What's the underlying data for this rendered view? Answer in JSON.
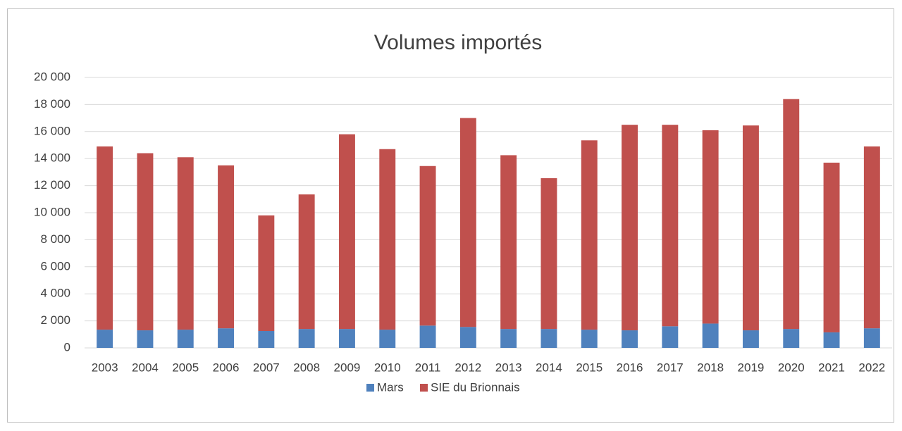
{
  "chart_data": {
    "type": "stacked_bar",
    "title": "Volumes importés",
    "categories": [
      "2003",
      "2004",
      "2005",
      "2006",
      "2007",
      "2008",
      "2009",
      "2010",
      "2011",
      "2012",
      "2013",
      "2014",
      "2015",
      "2016",
      "2017",
      "2018",
      "2019",
      "2020",
      "2021",
      "2022"
    ],
    "series": [
      {
        "name": "Mars",
        "color": "#4f81bd",
        "values": [
          1350,
          1300,
          1350,
          1450,
          1250,
          1400,
          1400,
          1350,
          1650,
          1550,
          1400,
          1400,
          1350,
          1300,
          1600,
          1800,
          1300,
          1400,
          1150,
          1450
        ]
      },
      {
        "name": "SIE du Brionnais",
        "color": "#c0504d",
        "values": [
          13550,
          13100,
          12750,
          12050,
          8550,
          9950,
          14400,
          13350,
          11800,
          15450,
          12850,
          11150,
          14000,
          15200,
          14900,
          14300,
          15150,
          17000,
          12550,
          13450
        ]
      }
    ],
    "ylim": [
      0,
      20000
    ],
    "yticks": [
      0,
      {
        "value": 2000,
        "label": "2 000"
      },
      {
        "value": 4000,
        "label": "4 000"
      },
      {
        "value": 6000,
        "label": "6 000"
      },
      {
        "value": 8000,
        "label": "8 000"
      },
      {
        "value": 10000,
        "label": "10 000"
      },
      {
        "value": 12000,
        "label": "12 000"
      },
      {
        "value": 14000,
        "label": "14 000"
      },
      {
        "value": 16000,
        "label": "16 000"
      },
      {
        "value": 18000,
        "label": "18 000"
      },
      {
        "value": 20000,
        "label": "20 000"
      }
    ],
    "grid": true,
    "legend": "bottom"
  }
}
